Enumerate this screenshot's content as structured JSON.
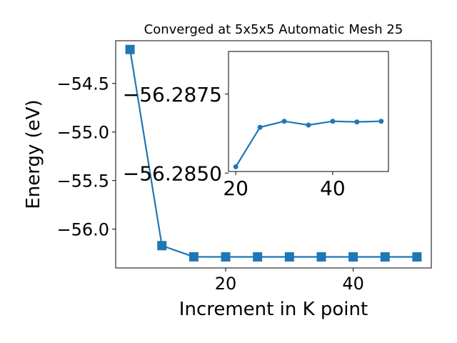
{
  "chart_data": [
    {
      "type": "line",
      "title": "Converged at 5x5x5 Automatic Mesh 25",
      "xlabel": "Increment in K point",
      "ylabel": "Energy (eV)",
      "xlim": [
        2.75,
        52.25
      ],
      "ylim": [
        -56.4,
        -54.06
      ],
      "xticks": [
        20,
        40
      ],
      "yticks": [
        -54.5,
        -55.0,
        -55.5,
        -56.0
      ],
      "ytick_labels": [
        "−54.5",
        "−55.0",
        "−55.5",
        "−56.0"
      ],
      "grid": false,
      "marker": "square",
      "series": [
        {
          "x": [
            5,
            10,
            15,
            20,
            25,
            30,
            35,
            40,
            45,
            50
          ],
          "y": [
            -54.15,
            -56.17,
            -56.2852,
            -56.2859,
            -56.2859,
            -56.2859,
            -56.2859,
            -56.2859,
            -56.2859,
            -56.2859
          ]
        }
      ]
    },
    {
      "type": "line",
      "title": "",
      "xlabel": "",
      "ylabel": "",
      "xlim": [
        18.5,
        51.5
      ],
      "ylim": [
        -56.28505,
        -56.28885
      ],
      "xticks": [
        20,
        40
      ],
      "yticks": [
        -56.2875,
        -56.285
      ],
      "ytick_labels": [
        "−56.2875",
        "−56.2850"
      ],
      "grid": false,
      "marker": "circle",
      "series": [
        {
          "x": [
            20,
            25,
            30,
            35,
            40,
            45,
            50
          ],
          "y": [
            -56.2852,
            -56.28645,
            -56.28664,
            -56.28652,
            -56.28664,
            -56.28662,
            -56.28664
          ]
        }
      ]
    }
  ],
  "colors": {
    "line": "#1f77b4",
    "axes": "#000000"
  }
}
